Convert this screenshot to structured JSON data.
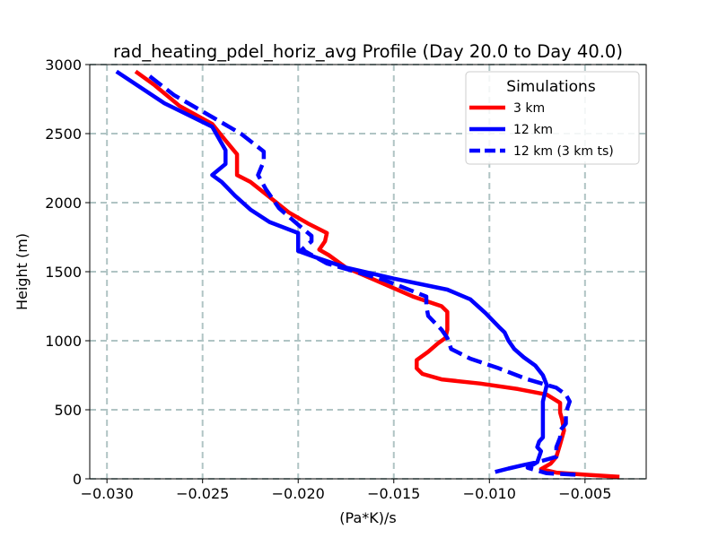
{
  "chart_data": {
    "type": "line",
    "title": "rad_heating_pdel_horiz_avg Profile (Day 20.0 to Day 40.0)",
    "xlabel": "(Pa*K)/s",
    "ylabel": "Height (m)",
    "xlim": [
      -0.0309,
      -0.0018
    ],
    "ylim": [
      0,
      3000
    ],
    "xticks": [
      -0.03,
      -0.025,
      -0.02,
      -0.015,
      -0.01,
      -0.005
    ],
    "xtick_labels": [
      "−0.030",
      "−0.025",
      "−0.020",
      "−0.015",
      "−0.010",
      "−0.005"
    ],
    "yticks": [
      0,
      500,
      1000,
      1500,
      2000,
      2500,
      3000
    ],
    "ytick_labels": [
      "0",
      "500",
      "1000",
      "1500",
      "2000",
      "2500",
      "3000"
    ],
    "grid": true,
    "legend": {
      "title": "Simulations",
      "placement": "top-right"
    },
    "series": [
      {
        "name": "3 km",
        "color": "#ff0000",
        "style": "solid",
        "points": [
          [
            -0.0032,
            15
          ],
          [
            -0.005,
            30
          ],
          [
            -0.0065,
            45
          ],
          [
            -0.0073,
            70
          ],
          [
            -0.0068,
            110
          ],
          [
            -0.0065,
            160
          ],
          [
            -0.0063,
            250
          ],
          [
            -0.0061,
            350
          ],
          [
            -0.0062,
            430
          ],
          [
            -0.0063,
            480
          ],
          [
            -0.0063,
            550
          ],
          [
            -0.007,
            610
          ],
          [
            -0.0085,
            650
          ],
          [
            -0.0105,
            690
          ],
          [
            -0.0125,
            720
          ],
          [
            -0.0135,
            760
          ],
          [
            -0.0138,
            800
          ],
          [
            -0.0138,
            860
          ],
          [
            -0.0132,
            920
          ],
          [
            -0.0127,
            980
          ],
          [
            -0.0123,
            1020
          ],
          [
            -0.0122,
            1080
          ],
          [
            -0.0122,
            1150
          ],
          [
            -0.0122,
            1210
          ],
          [
            -0.0125,
            1250
          ],
          [
            -0.014,
            1320
          ],
          [
            -0.016,
            1440
          ],
          [
            -0.0175,
            1530
          ],
          [
            -0.0184,
            1620
          ],
          [
            -0.0189,
            1660
          ],
          [
            -0.0186,
            1720
          ],
          [
            -0.0185,
            1780
          ],
          [
            -0.0195,
            1850
          ],
          [
            -0.0205,
            1930
          ],
          [
            -0.0215,
            2040
          ],
          [
            -0.0225,
            2150
          ],
          [
            -0.0232,
            2200
          ],
          [
            -0.0232,
            2300
          ],
          [
            -0.0232,
            2350
          ],
          [
            -0.0238,
            2450
          ],
          [
            -0.0245,
            2570
          ],
          [
            -0.0262,
            2700
          ],
          [
            -0.0275,
            2850
          ],
          [
            -0.0285,
            2950
          ]
        ]
      },
      {
        "name": "12 km",
        "color": "#0000ff",
        "style": "solid",
        "points": [
          [
            -0.0097,
            50
          ],
          [
            -0.009,
            75
          ],
          [
            -0.0082,
            100
          ],
          [
            -0.0075,
            120
          ],
          [
            -0.0074,
            160
          ],
          [
            -0.0073,
            200
          ],
          [
            -0.0075,
            230
          ],
          [
            -0.0074,
            270
          ],
          [
            -0.0072,
            300
          ],
          [
            -0.0072,
            370
          ],
          [
            -0.0072,
            430
          ],
          [
            -0.0072,
            500
          ],
          [
            -0.0072,
            560
          ],
          [
            -0.0071,
            620
          ],
          [
            -0.007,
            680
          ],
          [
            -0.0072,
            750
          ],
          [
            -0.0076,
            820
          ],
          [
            -0.0082,
            880
          ],
          [
            -0.0087,
            940
          ],
          [
            -0.009,
            1000
          ],
          [
            -0.0092,
            1060
          ],
          [
            -0.0095,
            1100
          ],
          [
            -0.0102,
            1200
          ],
          [
            -0.011,
            1300
          ],
          [
            -0.0122,
            1370
          ],
          [
            -0.015,
            1450
          ],
          [
            -0.0175,
            1530
          ],
          [
            -0.019,
            1600
          ],
          [
            -0.02,
            1650
          ],
          [
            -0.02,
            1700
          ],
          [
            -0.02,
            1780
          ],
          [
            -0.0215,
            1860
          ],
          [
            -0.0225,
            1950
          ],
          [
            -0.0233,
            2050
          ],
          [
            -0.024,
            2150
          ],
          [
            -0.0245,
            2200
          ],
          [
            -0.0238,
            2280
          ],
          [
            -0.0238,
            2380
          ],
          [
            -0.0245,
            2550
          ],
          [
            -0.027,
            2720
          ],
          [
            -0.0295,
            2950
          ]
        ]
      },
      {
        "name": "12 km (3 km ts)",
        "color": "#0000ff",
        "style": "dashed",
        "points": [
          [
            -0.0055,
            30
          ],
          [
            -0.007,
            40
          ],
          [
            -0.008,
            80
          ],
          [
            -0.0075,
            120
          ],
          [
            -0.0065,
            160
          ],
          [
            -0.0065,
            230
          ],
          [
            -0.0063,
            300
          ],
          [
            -0.0063,
            350
          ],
          [
            -0.006,
            400
          ],
          [
            -0.006,
            480
          ],
          [
            -0.0058,
            560
          ],
          [
            -0.006,
            610
          ],
          [
            -0.0065,
            660
          ],
          [
            -0.008,
            720
          ],
          [
            -0.0095,
            800
          ],
          [
            -0.011,
            870
          ],
          [
            -0.012,
            940
          ],
          [
            -0.0122,
            1020
          ],
          [
            -0.0125,
            1080
          ],
          [
            -0.0132,
            1180
          ],
          [
            -0.0133,
            1250
          ],
          [
            -0.0133,
            1320
          ],
          [
            -0.0155,
            1440
          ],
          [
            -0.0185,
            1560
          ],
          [
            -0.0198,
            1660
          ],
          [
            -0.0193,
            1720
          ],
          [
            -0.0193,
            1760
          ],
          [
            -0.02,
            1840
          ],
          [
            -0.021,
            1960
          ],
          [
            -0.0217,
            2100
          ],
          [
            -0.0221,
            2200
          ],
          [
            -0.0218,
            2300
          ],
          [
            -0.0218,
            2370
          ],
          [
            -0.023,
            2500
          ],
          [
            -0.0245,
            2620
          ],
          [
            -0.0265,
            2780
          ],
          [
            -0.028,
            2940
          ]
        ]
      }
    ]
  }
}
